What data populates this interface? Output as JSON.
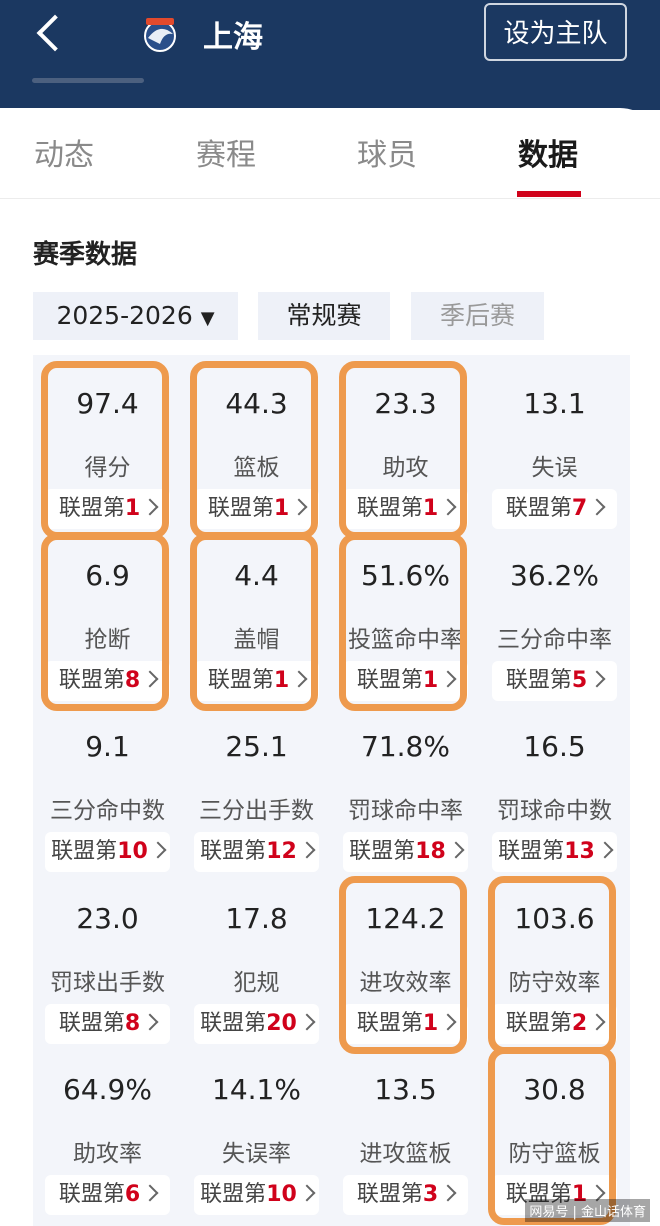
{
  "header": {
    "team_name": "上海",
    "set_home_button": "设为主队"
  },
  "tabs": [
    "动态",
    "赛程",
    "球员",
    "数据"
  ],
  "active_tab": 3,
  "section_title": "赛季数据",
  "filters": {
    "season": "2025-2026",
    "regular": "常规赛",
    "playoffs": "季后赛"
  },
  "stats": [
    {
      "value": "97.4",
      "label": "得分",
      "rank_prefix": "联盟第",
      "rank": "1",
      "circled": true
    },
    {
      "value": "44.3",
      "label": "篮板",
      "rank_prefix": "联盟第",
      "rank": "1",
      "circled": true
    },
    {
      "value": "23.3",
      "label": "助攻",
      "rank_prefix": "联盟第",
      "rank": "1",
      "circled": true
    },
    {
      "value": "13.1",
      "label": "失误",
      "rank_prefix": "联盟第",
      "rank": "7",
      "circled": false
    },
    {
      "value": "6.9",
      "label": "抢断",
      "rank_prefix": "联盟第",
      "rank": "8",
      "circled": true
    },
    {
      "value": "4.4",
      "label": "盖帽",
      "rank_prefix": "联盟第",
      "rank": "1",
      "circled": true
    },
    {
      "value": "51.6%",
      "label": "投篮命中率",
      "rank_prefix": "联盟第",
      "rank": "1",
      "circled": true
    },
    {
      "value": "36.2%",
      "label": "三分命中率",
      "rank_prefix": "联盟第",
      "rank": "5",
      "circled": false
    },
    {
      "value": "9.1",
      "label": "三分命中数",
      "rank_prefix": "联盟第",
      "rank": "10",
      "circled": false
    },
    {
      "value": "25.1",
      "label": "三分出手数",
      "rank_prefix": "联盟第",
      "rank": "12",
      "circled": false
    },
    {
      "value": "71.8%",
      "label": "罚球命中率",
      "rank_prefix": "联盟第",
      "rank": "18",
      "circled": false
    },
    {
      "value": "16.5",
      "label": "罚球命中数",
      "rank_prefix": "联盟第",
      "rank": "13",
      "circled": false
    },
    {
      "value": "23.0",
      "label": "罚球出手数",
      "rank_prefix": "联盟第",
      "rank": "8",
      "circled": false
    },
    {
      "value": "17.8",
      "label": "犯规",
      "rank_prefix": "联盟第",
      "rank": "20",
      "circled": false
    },
    {
      "value": "124.2",
      "label": "进攻效率",
      "rank_prefix": "联盟第",
      "rank": "1",
      "circled": true
    },
    {
      "value": "103.6",
      "label": "防守效率",
      "rank_prefix": "联盟第",
      "rank": "2",
      "circled": true
    },
    {
      "value": "64.9%",
      "label": "助攻率",
      "rank_prefix": "联盟第",
      "rank": "6",
      "circled": false
    },
    {
      "value": "14.1%",
      "label": "失误率",
      "rank_prefix": "联盟第",
      "rank": "10",
      "circled": false
    },
    {
      "value": "13.5",
      "label": "进攻篮板",
      "rank_prefix": "联盟第",
      "rank": "3",
      "circled": false
    },
    {
      "value": "30.8",
      "label": "防守篮板",
      "rank_prefix": "联盟第",
      "rank": "1",
      "circled": true
    }
  ],
  "watermark": "网易号 | 金山话体育"
}
